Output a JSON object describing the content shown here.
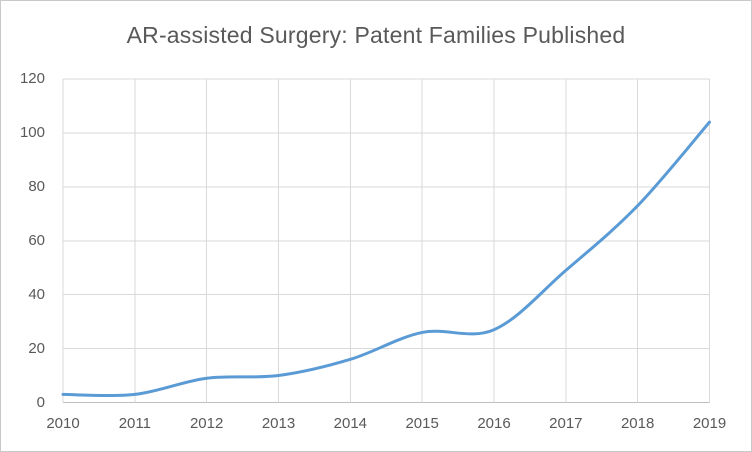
{
  "chart_data": {
    "type": "line",
    "title": "AR-assisted Surgery: Patent Families Published",
    "categories": [
      "2010",
      "2011",
      "2012",
      "2013",
      "2014",
      "2015",
      "2016",
      "2017",
      "2018",
      "2019"
    ],
    "values": [
      3,
      3,
      9,
      10,
      16,
      26,
      27,
      49,
      73,
      104
    ],
    "xlabel": "",
    "ylabel": "",
    "ylim": [
      0,
      120
    ],
    "yticks": [
      0,
      20,
      40,
      60,
      80,
      100,
      120
    ],
    "grid": true,
    "legend": "none",
    "smooth": true,
    "colors": {
      "line": "#5B9BD5",
      "gridline": "#D9D9D9",
      "axis_line": "#BFBFBF",
      "tick_label": "#595959",
      "title": "#595959",
      "background": "#FFFFFF",
      "frame_border": "#C9C9C9"
    }
  }
}
